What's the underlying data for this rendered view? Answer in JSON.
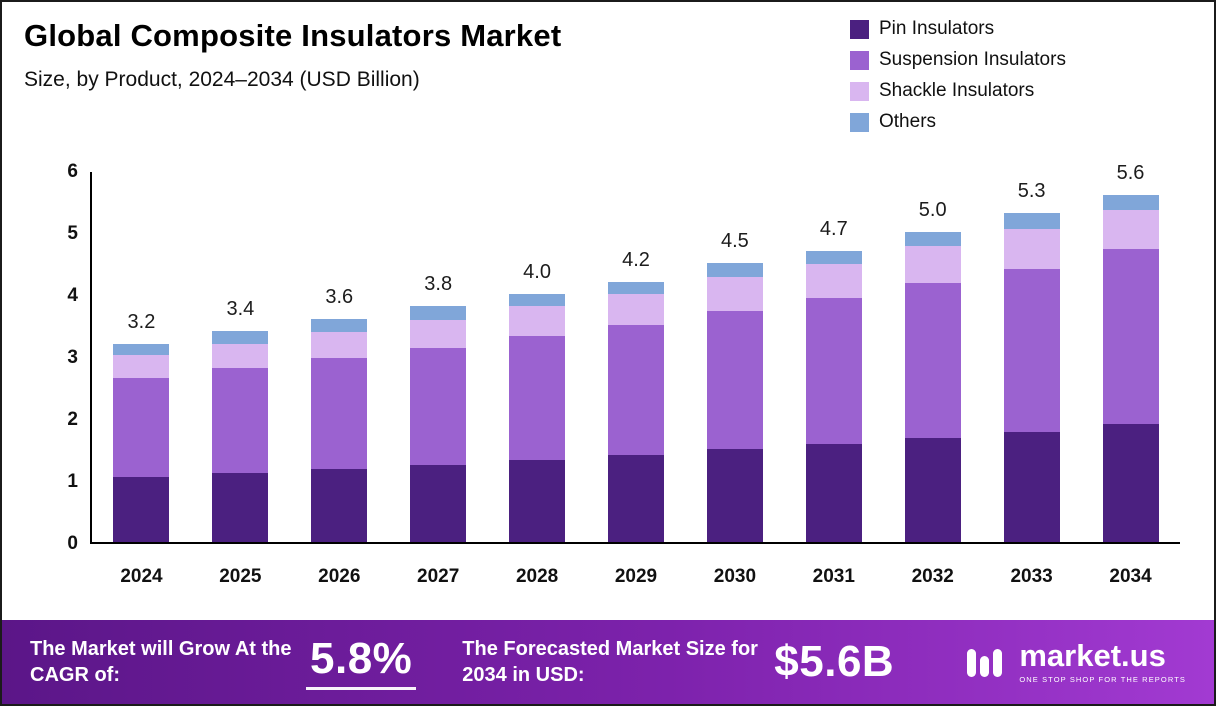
{
  "header": {
    "title": "Global Composite Insulators Market",
    "subtitle": "Size, by Product, 2024–2034 (USD Billion)"
  },
  "legend": [
    {
      "label": "Pin Insulators",
      "color": "#4b2080"
    },
    {
      "label": "Suspension Insulators",
      "color": "#9b62d0"
    },
    {
      "label": "Shackle Insulators",
      "color": "#d9b6f0"
    },
    {
      "label": "Others",
      "color": "#80a6d9"
    }
  ],
  "chart_data": {
    "type": "bar",
    "stacked": true,
    "title": "Global Composite Insulators Market",
    "subtitle": "Size, by Product, 2024–2034 (USD Billion)",
    "xlabel": "",
    "ylabel": "",
    "ylim": [
      0,
      6
    ],
    "yticks": [
      0,
      1,
      2,
      3,
      4,
      5,
      6
    ],
    "grid": false,
    "legend_position": "top-right",
    "categories": [
      "2024",
      "2025",
      "2026",
      "2027",
      "2028",
      "2029",
      "2030",
      "2031",
      "2032",
      "2033",
      "2034"
    ],
    "totals": [
      3.2,
      3.4,
      3.6,
      3.8,
      4.0,
      4.2,
      4.5,
      4.7,
      5.0,
      5.3,
      5.6
    ],
    "total_labels": [
      "3.2",
      "3.4",
      "3.6",
      "3.8",
      "4.0",
      "4.2",
      "4.5",
      "4.7",
      "5.0",
      "5.3",
      "5.6"
    ],
    "series": [
      {
        "name": "Pin Insulators",
        "color": "#4b2080",
        "values": [
          1.05,
          1.12,
          1.18,
          1.25,
          1.33,
          1.4,
          1.5,
          1.58,
          1.68,
          1.78,
          1.9
        ]
      },
      {
        "name": "Suspension Insulators",
        "color": "#9b62d0",
        "values": [
          1.6,
          1.68,
          1.78,
          1.88,
          2.0,
          2.1,
          2.22,
          2.35,
          2.5,
          2.62,
          2.82
        ]
      },
      {
        "name": "Shackle Insulators",
        "color": "#d9b6f0",
        "values": [
          0.37,
          0.4,
          0.42,
          0.45,
          0.47,
          0.5,
          0.55,
          0.55,
          0.6,
          0.65,
          0.63
        ]
      },
      {
        "name": "Others",
        "color": "#80a6d9",
        "values": [
          0.18,
          0.2,
          0.22,
          0.22,
          0.2,
          0.2,
          0.23,
          0.22,
          0.22,
          0.25,
          0.25
        ]
      }
    ]
  },
  "footer": {
    "cagr_label": "The Market will Grow At the CAGR of:",
    "cagr_value": "5.8%",
    "forecast_label": "The Forecasted Market Size for 2034 in USD:",
    "forecast_value": "$5.6B",
    "brand": "market.us",
    "brand_tagline": "ONE STOP SHOP FOR THE REPORTS"
  }
}
